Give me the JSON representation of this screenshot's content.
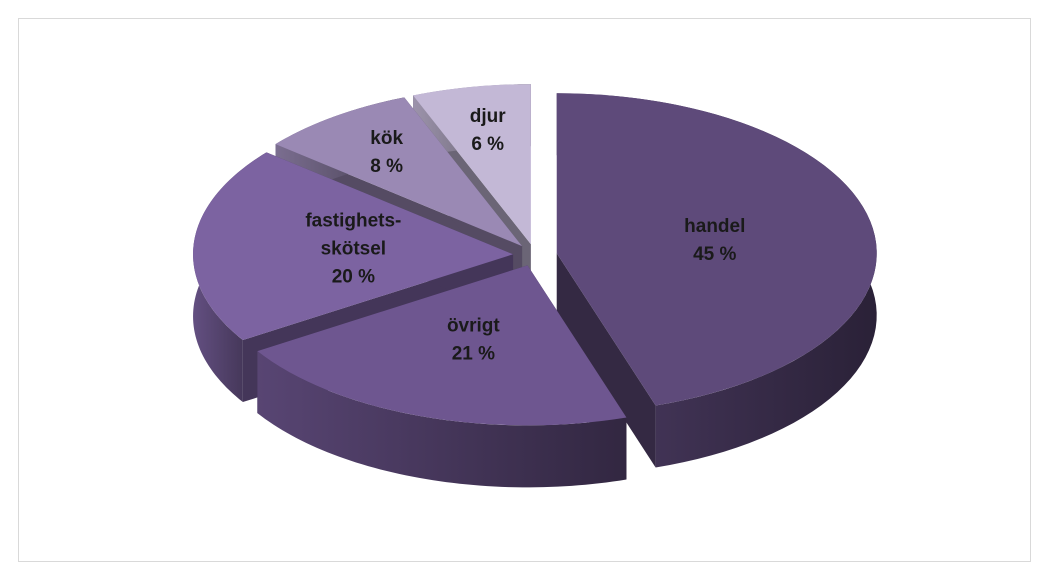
{
  "chart_data": {
    "type": "pie3d",
    "categories": [
      "handel",
      "övrigt",
      "fastighets-skötsel",
      "kök",
      "djur"
    ],
    "values": [
      45,
      21,
      20,
      8,
      6
    ],
    "value_labels": [
      "45 %",
      "21 %",
      "20 %",
      "8 %",
      "6 %"
    ],
    "colors": [
      "#5e4a7a",
      "#6e5690",
      "#7c63a1",
      "#9a89b4",
      "#c3b8d6"
    ]
  }
}
